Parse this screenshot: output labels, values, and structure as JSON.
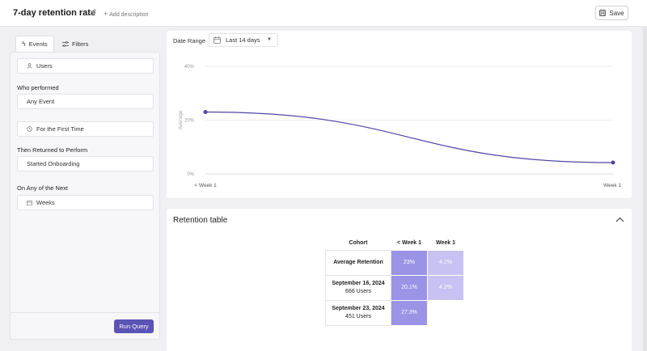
{
  "header": {
    "title": "7-day retention rate",
    "add_description": "Add description",
    "save_label": "Save"
  },
  "tabs": [
    {
      "label": "Events"
    },
    {
      "label": "Filters"
    }
  ],
  "builder": {
    "entity": "Users",
    "who_performed_label": "Who performed",
    "first_event": "Any Event",
    "first_event_qualifier": "For the First Time",
    "then_returned_label": "Then Returned to Perform",
    "return_event": "Started Onboarding",
    "period_label": "On Any of the Next",
    "period_unit": "Weeks",
    "run_label": "Run Query"
  },
  "date_range": {
    "label": "Date Range",
    "value": "Last 14 days"
  },
  "chart_data": {
    "type": "line",
    "ylabel": "Average",
    "x": [
      "< Week 1",
      "Week 1"
    ],
    "series": [
      {
        "values": [
          23,
          4.2
        ]
      }
    ],
    "ylim": [
      0,
      40
    ],
    "yticks": [
      "0%",
      "20%",
      "40%"
    ],
    "grid": true,
    "line_color": "#4f46a5"
  },
  "retention": {
    "title": "Retention table",
    "columns": [
      "Cohort",
      "< Week 1",
      "Week 1"
    ],
    "rows": [
      {
        "label": "Average Retention",
        "sub": "",
        "cells": [
          "23%",
          "4.2%"
        ]
      },
      {
        "label": "September 16, 2024",
        "sub": "666 Users",
        "cells": [
          "20.1%",
          "4.2%"
        ]
      },
      {
        "label": "September 23, 2024",
        "sub": "451 Users",
        "cells": [
          "27.3%",
          ""
        ]
      }
    ]
  },
  "colors": {
    "accent": "#5b53b5",
    "cell_dark": "#9b93e6",
    "cell_light": "#c7c2f2"
  }
}
